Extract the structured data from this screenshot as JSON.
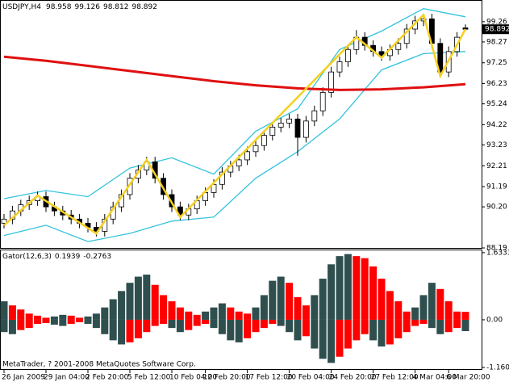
{
  "chart_data": [
    {
      "type": "candlestick",
      "title": "USDJPY,H4",
      "categories": [
        "26 Jan 2009",
        null,
        null,
        null,
        null,
        "29 Jan 04:00",
        null,
        null,
        null,
        null,
        "2 Feb 20:00",
        null,
        null,
        null,
        null,
        "5 Feb 12:00",
        null,
        null,
        null,
        null,
        "10 Feb 04:00",
        null,
        null,
        null,
        "12 Feb 20:00",
        null,
        null,
        null,
        null,
        "17 Feb 12:00",
        null,
        null,
        null,
        null,
        "20 Feb 04:00",
        null,
        null,
        null,
        null,
        "24 Feb 20:00",
        null,
        null,
        null,
        null,
        "27 Feb 12:00",
        null,
        null,
        null,
        null,
        "4 Mar 04:00",
        null,
        null,
        null,
        "6 Mar 20:00",
        null,
        null
      ],
      "open": [
        89.4,
        89.6,
        90.0,
        90.3,
        90.5,
        90.7,
        90.2,
        90.0,
        89.8,
        89.6,
        89.4,
        89.2,
        89.0,
        89.6,
        90.2,
        90.8,
        91.6,
        92.0,
        92.4,
        91.6,
        90.8,
        90.2,
        89.8,
        90.1,
        90.5,
        90.9,
        91.3,
        91.9,
        92.2,
        92.5,
        92.9,
        93.2,
        93.7,
        94.1,
        94.3,
        94.5,
        93.6,
        94.4,
        94.9,
        95.8,
        96.8,
        97.3,
        97.9,
        98.5,
        98.1,
        97.8,
        97.6,
        97.9,
        98.2,
        98.9,
        99.3,
        99.4,
        98.2,
        96.8,
        97.8,
        98.958
      ],
      "high": [
        89.85,
        90.25,
        90.55,
        90.75,
        90.95,
        90.95,
        90.45,
        90.25,
        90.05,
        89.85,
        89.65,
        89.45,
        89.85,
        90.45,
        91.05,
        91.85,
        92.25,
        92.65,
        92.65,
        91.85,
        91.05,
        90.45,
        90.35,
        90.75,
        91.15,
        91.55,
        92.15,
        92.45,
        92.75,
        93.15,
        93.45,
        93.95,
        94.35,
        94.55,
        94.75,
        94.75,
        94.65,
        95.15,
        96.05,
        97.05,
        97.55,
        98.15,
        98.85,
        98.75,
        98.35,
        98.05,
        98.15,
        98.45,
        99.15,
        99.55,
        99.65,
        99.65,
        98.45,
        98.05,
        98.75,
        99.126
      ],
      "low": [
        89.15,
        89.35,
        89.75,
        90.05,
        90.25,
        89.95,
        89.75,
        89.55,
        89.35,
        89.15,
        88.95,
        88.75,
        88.75,
        89.35,
        89.95,
        90.55,
        91.35,
        91.75,
        91.35,
        90.55,
        89.95,
        89.55,
        89.55,
        89.85,
        90.25,
        90.65,
        91.05,
        91.65,
        91.95,
        92.25,
        92.65,
        92.95,
        93.45,
        93.85,
        94.05,
        92.7,
        93.35,
        94.15,
        94.65,
        95.55,
        96.55,
        97.05,
        97.65,
        97.85,
        97.55,
        97.35,
        97.35,
        97.65,
        97.95,
        98.65,
        99.05,
        97.95,
        96.55,
        96.55,
        97.55,
        98.812
      ],
      "close": [
        89.6,
        90.0,
        90.3,
        90.5,
        90.7,
        90.2,
        90.0,
        89.8,
        89.6,
        89.4,
        89.2,
        89.0,
        89.6,
        90.2,
        90.8,
        91.6,
        92.0,
        92.4,
        91.6,
        90.8,
        90.2,
        89.8,
        90.1,
        90.5,
        90.9,
        91.3,
        91.9,
        92.2,
        92.5,
        92.9,
        93.2,
        93.7,
        94.1,
        94.3,
        94.5,
        93.6,
        94.4,
        94.9,
        95.8,
        96.8,
        97.3,
        97.9,
        98.5,
        98.1,
        97.8,
        97.6,
        97.9,
        98.2,
        98.9,
        99.3,
        99.4,
        98.2,
        96.8,
        97.8,
        98.5,
        98.892
      ],
      "colors": {
        "up": "#ffffff",
        "down": "#000000",
        "wick": "#000000"
      },
      "ylim": [
        88.15,
        99.73
      ],
      "yticks": [
        99.26,
        98.27,
        97.25,
        96.23,
        95.24,
        94.22,
        93.23,
        92.21,
        91.19,
        {
          "value": 90.2,
          "label": "90.20"
        },
        88.19
      ],
      "bands": {
        "x": [
          0,
          5,
          10,
          15,
          20,
          25,
          30,
          35,
          40,
          45,
          50,
          55
        ],
        "upper": [
          90.6,
          91.0,
          90.7,
          92.1,
          92.6,
          91.8,
          93.9,
          95.0,
          97.9,
          98.8,
          99.9,
          99.5
        ],
        "lower": [
          88.8,
          89.3,
          88.5,
          88.9,
          89.5,
          89.7,
          91.6,
          92.9,
          94.5,
          96.9,
          97.7,
          97.8
        ],
        "color": "#33c3dd"
      },
      "ma": {
        "x": [
          0,
          5,
          10,
          15,
          20,
          25,
          30,
          35,
          40,
          45,
          50,
          55
        ],
        "values": [
          97.55,
          97.35,
          97.1,
          96.85,
          96.6,
          96.35,
          96.15,
          96.0,
          95.92,
          95.95,
          96.05,
          96.2
        ],
        "color": "#e01010"
      },
      "zigzag": {
        "x": [
          0,
          4,
          11,
          17,
          21,
          42,
          45,
          50,
          52,
          55
        ],
        "values": [
          89.3,
          90.75,
          88.9,
          92.5,
          89.7,
          98.5,
          97.5,
          99.6,
          96.6,
          98.9
        ],
        "color": "#f5d020"
      }
    },
    {
      "type": "gator",
      "title": "Gator(12,6,3)",
      "upper": [
        0.45,
        0.35,
        0.25,
        0.15,
        0.1,
        0.05,
        0.08,
        0.12,
        0.1,
        0.05,
        0.08,
        0.15,
        0.3,
        0.5,
        0.7,
        0.9,
        1.05,
        1.1,
        0.85,
        0.6,
        0.45,
        0.3,
        0.2,
        0.12,
        0.2,
        0.3,
        0.4,
        0.3,
        0.2,
        0.15,
        0.3,
        0.6,
        0.95,
        1.05,
        0.9,
        0.55,
        0.35,
        0.6,
        1.0,
        1.35,
        1.55,
        1.6,
        1.55,
        1.5,
        1.3,
        1.0,
        0.7,
        0.45,
        0.2,
        0.3,
        0.6,
        0.9,
        0.75,
        0.45,
        0.2,
        0.1939
      ],
      "lower": [
        -0.3,
        -0.35,
        -0.25,
        -0.2,
        -0.1,
        -0.08,
        -0.12,
        -0.15,
        -0.1,
        -0.06,
        -0.1,
        -0.2,
        -0.35,
        -0.5,
        -0.6,
        -0.55,
        -0.45,
        -0.3,
        -0.15,
        -0.1,
        -0.2,
        -0.3,
        -0.25,
        -0.15,
        -0.1,
        -0.2,
        -0.35,
        -0.5,
        -0.55,
        -0.45,
        -0.3,
        -0.2,
        -0.1,
        -0.15,
        -0.3,
        -0.5,
        -0.4,
        -0.7,
        -0.95,
        -1.05,
        -0.9,
        -0.7,
        -0.5,
        -0.35,
        -0.5,
        -0.65,
        -0.6,
        -0.45,
        -0.3,
        -0.15,
        -0.1,
        -0.2,
        -0.35,
        -0.3,
        -0.2,
        -0.2763
      ],
      "colors": {
        "increase": "#2f4f4f",
        "decrease": "#ff0000"
      },
      "ylim": [
        -1.22,
        1.69
      ],
      "yticks": [
        1.6333,
        {
          "value": 0,
          "label": "0.00"
        },
        -1.1606
      ]
    }
  ],
  "footer": "MetaTrader, ? 2001-2008 MetaQuotes Software Corp."
}
